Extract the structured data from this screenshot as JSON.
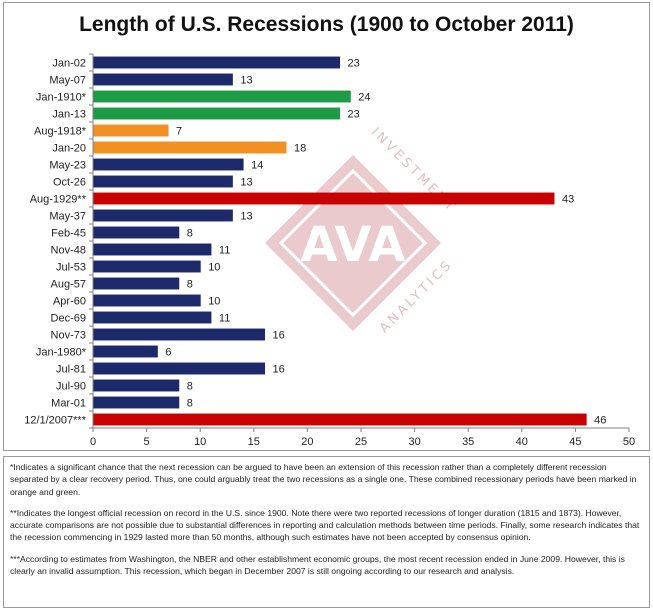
{
  "chart_data": {
    "type": "bar",
    "orientation": "horizontal",
    "title": "Length of U.S. Recessions (1900 to October 2011)",
    "categories": [
      "Jan-02",
      "May-07",
      "Jan-1910*",
      "Jan-13",
      "Aug-1918*",
      "Jan-20",
      "May-23",
      "Oct-26",
      "Aug-1929**",
      "May-37",
      "Feb-45",
      "Nov-48",
      "Jul-53",
      "Aug-57",
      "Apr-60",
      "Dec-69",
      "Nov-73",
      "Jan-1980*",
      "Jul-81",
      "Jul-90",
      "Mar-01",
      "12/1/2007***"
    ],
    "values": [
      23,
      13,
      24,
      23,
      7,
      18,
      14,
      13,
      43,
      13,
      8,
      11,
      10,
      8,
      10,
      11,
      16,
      6,
      16,
      8,
      8,
      46
    ],
    "bar_colors": [
      "#1c2a6b",
      "#1c2a6b",
      "#1e9c45",
      "#1e9c45",
      "#f39024",
      "#f39024",
      "#1c2a6b",
      "#1c2a6b",
      "#c80000",
      "#1c2a6b",
      "#1c2a6b",
      "#1c2a6b",
      "#1c2a6b",
      "#1c2a6b",
      "#1c2a6b",
      "#1c2a6b",
      "#1c2a6b",
      "#1c2a6b",
      "#1c2a6b",
      "#1c2a6b",
      "#1c2a6b",
      "#c80000"
    ],
    "xlim": [
      0,
      50
    ],
    "xticks": [
      0,
      5,
      10,
      15,
      20,
      25,
      30,
      35,
      40,
      45,
      50
    ],
    "grid": false,
    "legend": "none"
  },
  "watermark": {
    "logo_text": "AVA",
    "arc_text_top": "INVESTMENT",
    "arc_text_bottom": "ANALYTICS",
    "color": "#d9a0a6"
  },
  "notes": [
    "*Indicates a significant chance that the next recession can be argued to have been an extension of this recession rather than a completely different recession separated by a clear recovery period. Thus, one could arguably treat the two recessions as a single one.  These combined recessionary periods have been marked in orange and green.",
    "**Indicates the longest official recession on record in the U.S. since 1900. Note there were two reported recessions of longer duration (1815 and 1873). However, accurate comparisons are not possible due to substantial differences in reporting and calculation methods between time periods. Finally, some research indicates that the recession commencing in 1929 lasted more than 50 months, although such estimates have not been accepted by consensus opinion.",
    "***According to estimates from Washington, the NBER and other establishment economic groups, the most recent recession ended in June 2009. However, this is clearly an invalid assumption. This recession, which began in December 2007 is still ongoing according to our research and analysis."
  ]
}
